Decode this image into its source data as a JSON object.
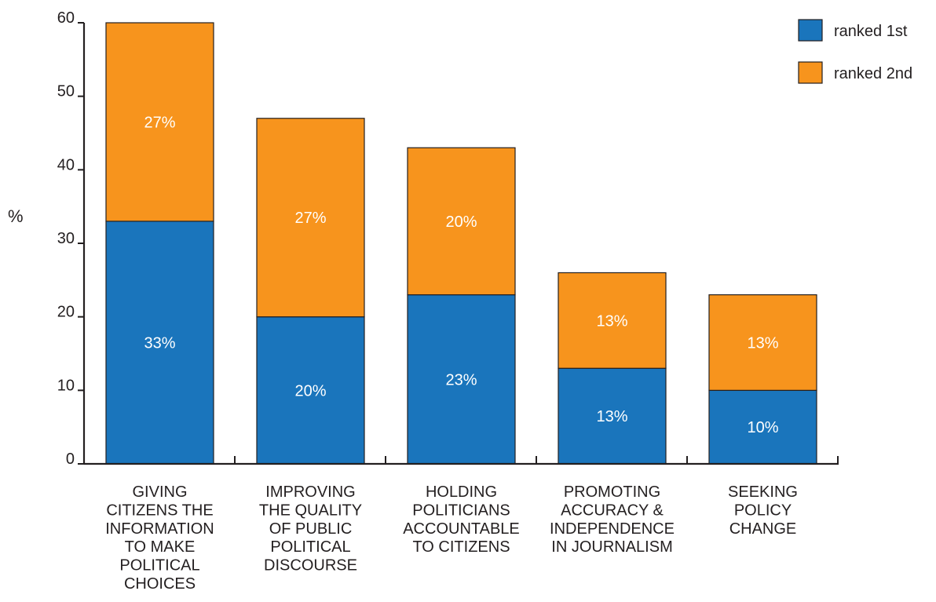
{
  "chart_data": {
    "type": "bar",
    "stacked": true,
    "ylabel": "%",
    "ylim": [
      0,
      60
    ],
    "yticks": [
      0,
      10,
      20,
      30,
      40,
      50,
      60
    ],
    "categories": [
      [
        "GIVING",
        "CITIZENS THE",
        "INFORMATION",
        "TO MAKE",
        "POLITICAL",
        "CHOICES"
      ],
      [
        "IMPROVING",
        "THE QUALITY",
        "OF PUBLIC",
        "POLITICAL",
        "DISCOURSE"
      ],
      [
        "HOLDING",
        "POLITICIANS",
        "ACCOUNTABLE",
        "TO CITIZENS"
      ],
      [
        "PROMOTING",
        "ACCURACY &",
        "INDEPENDENCE",
        "IN JOURNALISM"
      ],
      [
        "SEEKING",
        "POLICY",
        "CHANGE"
      ]
    ],
    "series": [
      {
        "name": "ranked 1st",
        "color": "#1a75bc",
        "values": [
          33,
          20,
          23,
          13,
          10
        ],
        "labels": [
          "33%",
          "20%",
          "23%",
          "13%",
          "10%"
        ]
      },
      {
        "name": "ranked 2nd",
        "color": "#f7941d",
        "values": [
          27,
          27,
          20,
          13,
          13
        ],
        "labels": [
          "27%",
          "27%",
          "20%",
          "13%",
          "13%"
        ]
      }
    ],
    "legend_position": "top-right",
    "grid": false
  }
}
